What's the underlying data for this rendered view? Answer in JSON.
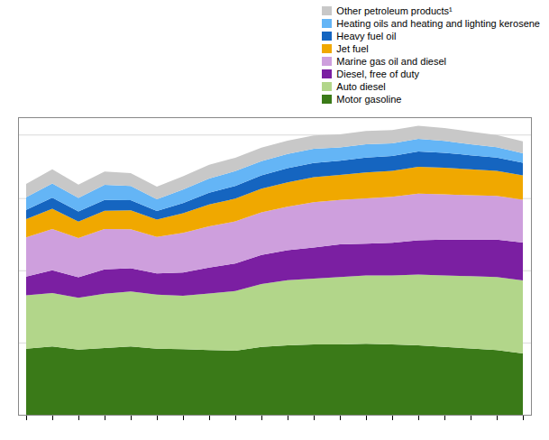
{
  "chart_data": {
    "type": "area",
    "stacked": true,
    "categories": [
      null,
      null,
      null,
      null,
      null,
      null,
      null,
      null,
      null,
      null,
      null,
      null,
      null,
      null,
      null,
      null,
      null,
      null,
      null,
      null
    ],
    "series": [
      {
        "name": "Motor gasoline",
        "color": "#3a7a18",
        "values": [
          420,
          435,
          415,
          425,
          435,
          420,
          418,
          412,
          408,
          432,
          442,
          447,
          447,
          452,
          447,
          442,
          432,
          422,
          412,
          390
        ]
      },
      {
        "name": "Auto diesel",
        "color": "#b2d68a",
        "values": [
          340,
          340,
          330,
          345,
          350,
          345,
          340,
          360,
          380,
          400,
          415,
          420,
          430,
          435,
          440,
          450,
          455,
          460,
          465,
          465
        ]
      },
      {
        "name": "Diesel, free of duty",
        "color": "#7b1fa2",
        "values": [
          120,
          145,
          130,
          155,
          148,
          135,
          148,
          165,
          175,
          185,
          190,
          198,
          208,
          202,
          208,
          218,
          228,
          233,
          238,
          242
        ]
      },
      {
        "name": "Marine gas oil and diesel",
        "color": "#ce9fdd",
        "values": [
          250,
          262,
          250,
          258,
          248,
          232,
          252,
          262,
          268,
          272,
          278,
          288,
          282,
          288,
          292,
          298,
          288,
          282,
          278,
          272
        ]
      },
      {
        "name": "Jet fuel",
        "color": "#f0a800",
        "values": [
          115,
          130,
          105,
          115,
          120,
          110,
          125,
          140,
          145,
          150,
          155,
          160,
          160,
          165,
          165,
          170,
          170,
          165,
          160,
          155
        ]
      },
      {
        "name": "Heavy fuel oil",
        "color": "#1565c0",
        "values": [
          60,
          70,
          65,
          70,
          65,
          55,
          65,
          75,
          80,
          85,
          90,
          90,
          90,
          95,
          95,
          98,
          95,
          90,
          85,
          80
        ]
      },
      {
        "name": "Heating oils and heating and lighting kerosene",
        "color": "#64b5f6",
        "values": [
          80,
          90,
          85,
          95,
          90,
          75,
          85,
          90,
          95,
          90,
          90,
          90,
          85,
          85,
          80,
          80,
          75,
          70,
          65,
          60
        ]
      },
      {
        "name": "Other petroleum products¹",
        "color": "#c8c8c8",
        "values": [
          85,
          90,
          85,
          85,
          83,
          80,
          85,
          87,
          85,
          87,
          85,
          85,
          83,
          85,
          85,
          83,
          83,
          80,
          78,
          76
        ]
      }
    ],
    "ylim": [
      0,
      1894.17
    ],
    "yticks": [
      459.75,
      919.5,
      1379.25,
      1783.83
    ],
    "grid": true,
    "legend": "upper right",
    "tick_labels": false
  }
}
